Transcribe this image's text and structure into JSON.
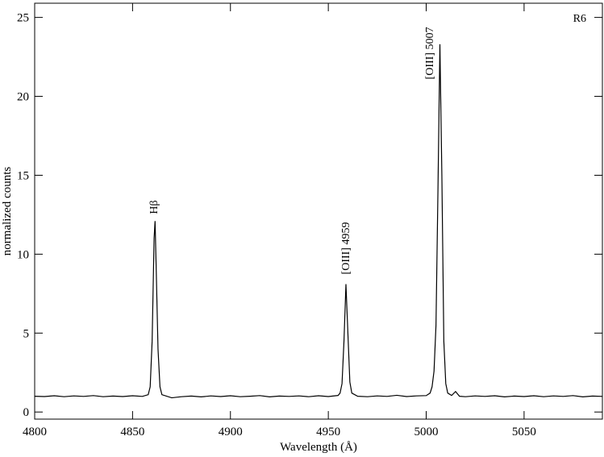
{
  "chart_data": {
    "type": "line",
    "xlabel": "Wavelength  (Å)",
    "ylabel": "normalized counts",
    "annotations": [
      "Hβ",
      "[OIII] 4959",
      "[OIII] 5007",
      "R6"
    ],
    "x": [
      4800,
      4805,
      4810,
      4815,
      4820,
      4825,
      4830,
      4835,
      4840,
      4845,
      4850,
      4855,
      4858,
      4859,
      4860,
      4861,
      4861.5,
      4862,
      4863,
      4864,
      4865,
      4870,
      4875,
      4880,
      4885,
      4890,
      4895,
      4900,
      4905,
      4910,
      4915,
      4920,
      4925,
      4930,
      4935,
      4940,
      4945,
      4950,
      4955,
      4956,
      4957,
      4958,
      4959,
      4960,
      4961,
      4962,
      4965,
      4970,
      4975,
      4980,
      4985,
      4990,
      4995,
      5000,
      5002,
      5003,
      5004,
      5005,
      5006,
      5007,
      5008,
      5009,
      5010,
      5011,
      5013,
      5015,
      5017,
      5020,
      5025,
      5030,
      5035,
      5040,
      5045,
      5050,
      5055,
      5060,
      5065,
      5070,
      5075,
      5080,
      5085,
      5090
    ],
    "series": [
      {
        "color": "#000000",
        "values": [
          1.0,
          0.98,
          1.03,
          0.97,
          1.02,
          0.99,
          1.04,
          0.97,
          1.01,
          0.98,
          1.03,
          0.99,
          1.1,
          1.6,
          4.5,
          11.0,
          12.1,
          9.5,
          4.0,
          1.6,
          1.1,
          0.9,
          0.97,
          1.01,
          0.96,
          1.02,
          0.98,
          1.03,
          0.97,
          1.0,
          1.04,
          0.96,
          1.01,
          0.99,
          1.02,
          0.97,
          1.03,
          0.98,
          1.05,
          1.2,
          1.8,
          4.5,
          8.1,
          5.0,
          1.9,
          1.2,
          1.0,
          0.97,
          1.02,
          0.99,
          1.06,
          0.98,
          1.02,
          1.04,
          1.2,
          1.6,
          2.6,
          5.5,
          14.0,
          23.3,
          15.0,
          4.5,
          1.8,
          1.2,
          1.05,
          1.3,
          1.0,
          0.97,
          1.02,
          0.99,
          1.03,
          0.96,
          1.01,
          0.98,
          1.03,
          0.97,
          1.02,
          0.99,
          1.04,
          0.96,
          1.01,
          0.99
        ]
      }
    ],
    "xlim": [
      4800,
      5090
    ],
    "ylim": [
      -0.45,
      25.9
    ],
    "xticks": [
      4800,
      4850,
      4900,
      4950,
      5000,
      5050
    ],
    "yticks": [
      0,
      5,
      10,
      15,
      20,
      25
    ]
  }
}
